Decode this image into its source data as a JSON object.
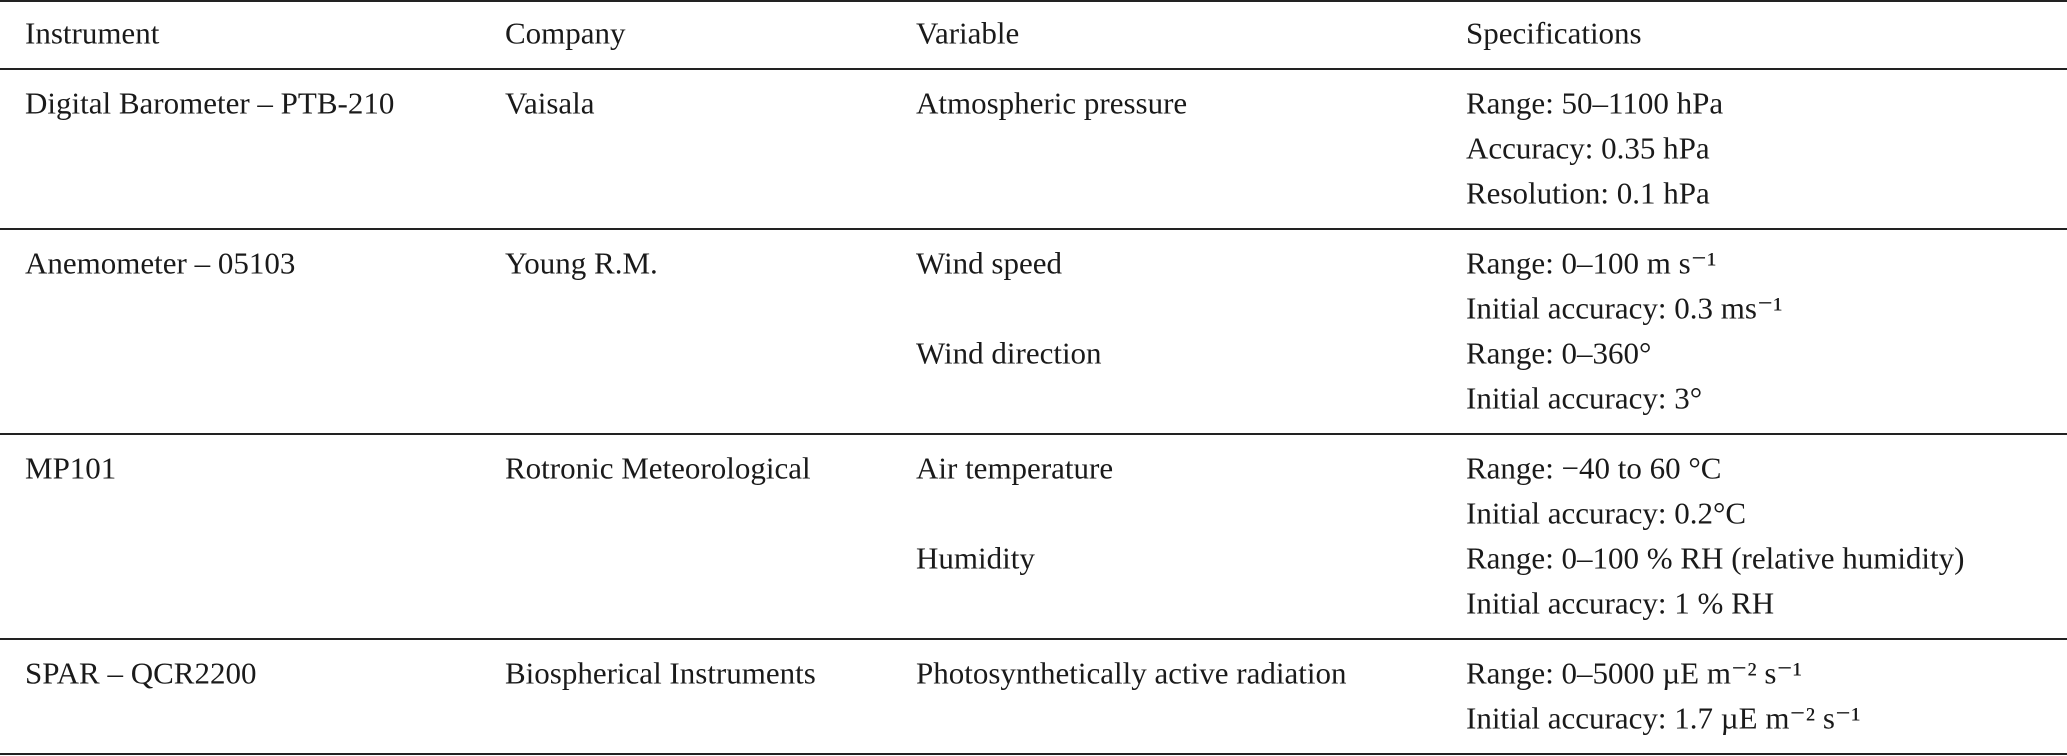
{
  "table": {
    "header": [
      "Instrument",
      "Company",
      "Variable",
      "Specifications"
    ],
    "rows": [
      {
        "instrument": "Digital Barometer – PTB-210",
        "company": "Vaisala",
        "variables": [
          {
            "name": "Atmospheric pressure",
            "specs": [
              "Range: 50–1100 hPa",
              "Accuracy: 0.35 hPa",
              "Resolution: 0.1 hPa"
            ]
          }
        ]
      },
      {
        "instrument": "Anemometer – 05103",
        "company": "Young R.M.",
        "variables": [
          {
            "name": "Wind speed",
            "specs": [
              "Range: 0–100 m s⁻¹",
              "Initial accuracy: 0.3 ms⁻¹"
            ]
          },
          {
            "name": "Wind direction",
            "specs": [
              "Range: 0–360°",
              "Initial accuracy: 3°"
            ]
          }
        ]
      },
      {
        "instrument": "MP101",
        "company": "Rotronic Meteorological",
        "variables": [
          {
            "name": "Air temperature",
            "specs": [
              "Range: −40 to 60 °C",
              "Initial accuracy: 0.2°C"
            ]
          },
          {
            "name": "Humidity",
            "specs": [
              "Range: 0–100 % RH (relative humidity)",
              "Initial accuracy: 1 % RH"
            ]
          }
        ]
      },
      {
        "instrument": "SPAR – QCR2200",
        "company": "Biospherical Instruments",
        "variables": [
          {
            "name": "Photosynthetically active radiation",
            "specs": [
              "Range: 0–5000 µE m⁻² s⁻¹",
              "Initial accuracy: 1.7 µE m⁻² s⁻¹"
            ]
          }
        ]
      }
    ]
  }
}
